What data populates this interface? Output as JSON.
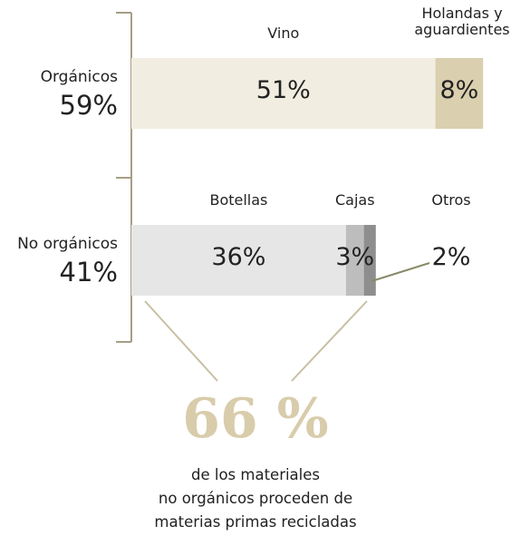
{
  "chart_data": {
    "type": "stacked_bar",
    "groups": [
      {
        "name": "Orgánicos",
        "total": 59,
        "total_label": "59%",
        "categories": [
          "Vino",
          "Holandas y aguardientes"
        ],
        "values": [
          51,
          8
        ],
        "value_labels": [
          "51%",
          "8%"
        ],
        "colors": [
          "#f1ede0",
          "#dacfae"
        ]
      },
      {
        "name": "No orgánicos",
        "total": 41,
        "total_label": "41%",
        "categories": [
          "Botellas",
          "Cajas",
          "Otros"
        ],
        "values": [
          36,
          3,
          2
        ],
        "value_labels": [
          "36%",
          "3%",
          "2%"
        ],
        "colors": [
          "#e6e6e6",
          "#bdbdbd",
          "#8e8e8e"
        ]
      }
    ],
    "callout": {
      "value": 66,
      "label": "66 %",
      "lines": [
        "de los materiales",
        "no orgánicos proceden de",
        "materias primas recicladas"
      ]
    }
  }
}
